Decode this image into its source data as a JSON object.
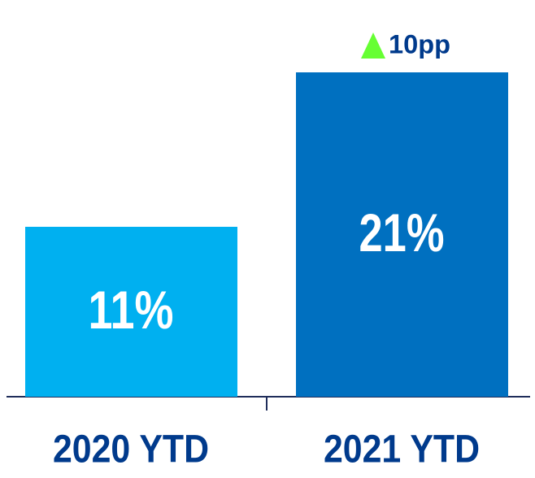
{
  "chart_data": {
    "type": "bar",
    "categories": [
      "2020 YTD",
      "2021 YTD"
    ],
    "values": [
      11,
      21
    ],
    "value_labels": [
      "11%",
      "21%"
    ],
    "colors": [
      "#00b0f0",
      "#0070c0"
    ],
    "annotation": "10pp"
  }
}
